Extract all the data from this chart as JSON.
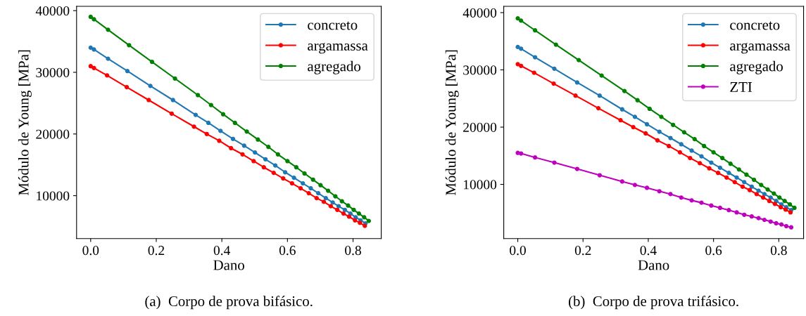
{
  "chart_data": [
    {
      "type": "line",
      "xlabel": "Dano",
      "ylabel": "Módulo de Young [MPa]",
      "annotations": [
        "(a)  Corpo de prova bifásico."
      ],
      "xlim": [
        -0.043,
        0.886
      ],
      "xticks": [
        {
          "value": 0,
          "label": "0.0"
        },
        0.2,
        0.4,
        0.6,
        0.8
      ],
      "ylim": [
        3040,
        40700
      ],
      "yticks": [
        10000,
        20000,
        30000,
        40000
      ],
      "grid": false,
      "legend": "top right",
      "marker": "circle",
      "line_style": "solid",
      "series": [
        {
          "name": "concreto",
          "color": "#1f77b4",
          "x": [
            0,
            0.01,
            0.053,
            0.112,
            0.182,
            0.251,
            0.32,
            0.359,
            0.396,
            0.434,
            0.468,
            0.501,
            0.533,
            0.563,
            0.593,
            0.62,
            0.647,
            0.671,
            0.694,
            0.717,
            0.738,
            0.756,
            0.775,
            0.792,
            0.808,
            0.823,
            0.838
          ],
          "values": [
            34000,
            33700,
            32200,
            30200,
            27800,
            25500,
            23100,
            21800,
            20500,
            19200,
            18100,
            17000,
            15900,
            14900,
            13800,
            12900,
            12000,
            11200,
            10400,
            9600,
            8900,
            8300,
            7700,
            7100,
            6500,
            6000,
            5500
          ]
        },
        {
          "name": "argamassa",
          "color": "#ff0000",
          "x": [
            0,
            0.01,
            0.05,
            0.11,
            0.177,
            0.247,
            0.315,
            0.354,
            0.392,
            0.428,
            0.463,
            0.497,
            0.528,
            0.558,
            0.587,
            0.614,
            0.64,
            0.665,
            0.689,
            0.711,
            0.732,
            0.752,
            0.771,
            0.788,
            0.806,
            0.821,
            0.836
          ],
          "values": [
            31000,
            30700,
            29500,
            27600,
            25500,
            23300,
            21200,
            20000,
            18900,
            17700,
            16700,
            15600,
            14600,
            13700,
            12800,
            12000,
            11200,
            10400,
            9600,
            9000,
            8300,
            7700,
            7100,
            6600,
            6000,
            5600,
            5100
          ]
        },
        {
          "name": "agregado",
          "color": "#008000",
          "x": [
            0,
            0.01,
            0.053,
            0.117,
            0.187,
            0.257,
            0.327,
            0.367,
            0.404,
            0.44,
            0.476,
            0.51,
            0.542,
            0.571,
            0.6,
            0.627,
            0.652,
            0.678,
            0.701,
            0.724,
            0.746,
            0.766,
            0.785,
            0.802,
            0.818,
            0.834,
            0.848
          ],
          "values": [
            39000,
            38600,
            36900,
            34400,
            31700,
            29000,
            26300,
            24700,
            23200,
            21800,
            20400,
            19100,
            17900,
            16700,
            15600,
            14600,
            13600,
            12600,
            11700,
            10800,
            9900,
            9100,
            8400,
            7700,
            7100,
            6500,
            5900
          ]
        }
      ]
    },
    {
      "type": "line",
      "xlabel": "Dano",
      "ylabel": "Módulo de Young [MPa]",
      "annotations": [
        "(b)  Corpo de prova trifásico."
      ],
      "xlim": [
        -0.043,
        0.876
      ],
      "xticks": [
        {
          "value": 0,
          "label": "0.0"
        },
        0.2,
        0.4,
        0.6,
        0.8
      ],
      "ylim": [
        530,
        41100
      ],
      "yticks": [
        10000,
        20000,
        30000,
        40000
      ],
      "grid": false,
      "legend": "top right",
      "marker": "circle",
      "line_style": "solid",
      "series": [
        {
          "name": "concreto",
          "color": "#1f77b4",
          "x": [
            0,
            0.01,
            0.053,
            0.112,
            0.182,
            0.251,
            0.32,
            0.359,
            0.396,
            0.434,
            0.468,
            0.501,
            0.533,
            0.563,
            0.593,
            0.62,
            0.647,
            0.671,
            0.694,
            0.717,
            0.738,
            0.756,
            0.775,
            0.792,
            0.808,
            0.823,
            0.838
          ],
          "values": [
            34000,
            33700,
            32200,
            30200,
            27800,
            25500,
            23100,
            21800,
            20500,
            19200,
            18100,
            17000,
            15900,
            14900,
            13800,
            12900,
            12000,
            11200,
            10400,
            9600,
            8900,
            8300,
            7700,
            7100,
            6500,
            6000,
            5500
          ]
        },
        {
          "name": "argamassa",
          "color": "#ff0000",
          "x": [
            0,
            0.01,
            0.05,
            0.11,
            0.177,
            0.247,
            0.315,
            0.354,
            0.392,
            0.428,
            0.463,
            0.497,
            0.528,
            0.558,
            0.587,
            0.614,
            0.64,
            0.665,
            0.689,
            0.711,
            0.732,
            0.752,
            0.771,
            0.788,
            0.806,
            0.821,
            0.836
          ],
          "values": [
            31000,
            30700,
            29500,
            27600,
            25500,
            23300,
            21200,
            20000,
            18900,
            17700,
            16700,
            15600,
            14600,
            13700,
            12800,
            12000,
            11200,
            10400,
            9600,
            9000,
            8300,
            7700,
            7100,
            6600,
            6000,
            5600,
            5100
          ]
        },
        {
          "name": "agregado",
          "color": "#008000",
          "x": [
            0,
            0.01,
            0.053,
            0.117,
            0.187,
            0.257,
            0.327,
            0.367,
            0.404,
            0.44,
            0.476,
            0.51,
            0.542,
            0.571,
            0.6,
            0.627,
            0.652,
            0.678,
            0.701,
            0.724,
            0.746,
            0.766,
            0.785,
            0.802,
            0.818,
            0.834,
            0.848
          ],
          "values": [
            39000,
            38600,
            36900,
            34400,
            31700,
            29000,
            26300,
            24700,
            23200,
            21800,
            20400,
            19100,
            17900,
            16700,
            15600,
            14600,
            13600,
            12600,
            11700,
            10800,
            9900,
            9100,
            8400,
            7700,
            7100,
            6500,
            5900
          ]
        },
        {
          "name": "ZTI",
          "color": "#bf00bf",
          "x": [
            0,
            0.01,
            0.053,
            0.112,
            0.182,
            0.251,
            0.32,
            0.359,
            0.396,
            0.434,
            0.468,
            0.501,
            0.533,
            0.563,
            0.593,
            0.62,
            0.647,
            0.671,
            0.694,
            0.717,
            0.738,
            0.756,
            0.775,
            0.792,
            0.808,
            0.823,
            0.838
          ],
          "values": [
            15500,
            15400,
            14700,
            13800,
            12700,
            11600,
            10500,
            9900,
            9400,
            8800,
            8300,
            7700,
            7200,
            6800,
            6300,
            5900,
            5500,
            5100,
            4700,
            4400,
            4100,
            3800,
            3500,
            3200,
            3000,
            2700,
            2500
          ]
        }
      ]
    }
  ]
}
